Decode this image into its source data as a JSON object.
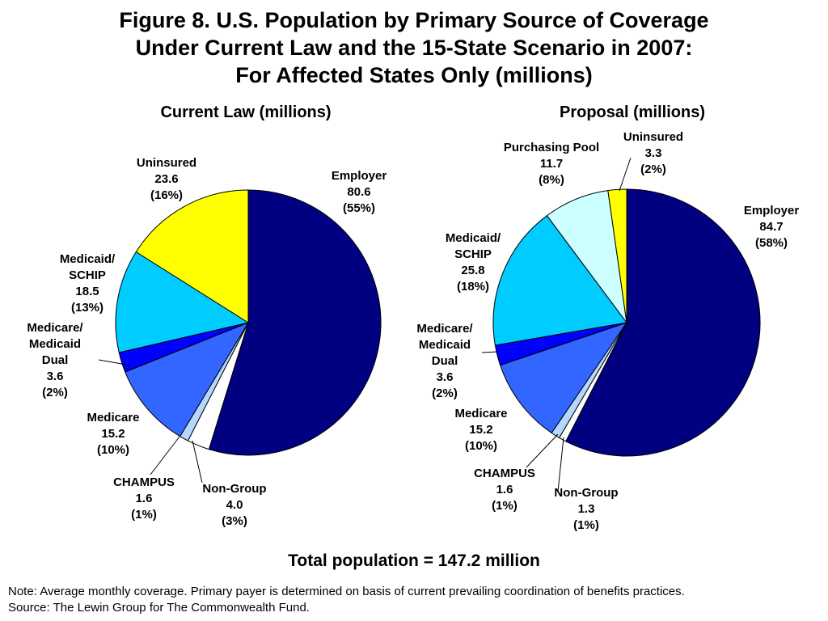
{
  "title_lines": [
    "Figure 8. U.S. Population by Primary Source of Coverage",
    "Under Current Law and the 15-State Scenario in 2007:",
    "For Affected States Only (millions)"
  ],
  "total": "Total population = 147.2 million",
  "note": "Note: Average monthly coverage. Primary payer is determined on basis of current prevailing coordination of benefits practices.",
  "source": "Source: The Lewin Group for The Commonwealth Fund.",
  "chart_data": [
    {
      "type": "pie",
      "title": "Current Law (millions)",
      "categories": [
        "Employer",
        "Non-Group",
        "CHAMPUS",
        "Medicare",
        "Medicare/ Medicaid Dual",
        "Medicaid/ SCHIP",
        "Uninsured"
      ],
      "values": [
        80.6,
        4.0,
        1.6,
        15.2,
        3.6,
        18.5,
        23.6
      ],
      "percents": [
        "55%",
        "3%",
        "1%",
        "10%",
        "2%",
        "13%",
        "16%"
      ],
      "colors": [
        "#000080",
        "#ffffff",
        "#b3d7ff",
        "#3366ff",
        "#0000ff",
        "#00ccff",
        "#ffff00"
      ],
      "labels": [
        {
          "lines": [
            "Employer",
            "80.6",
            "(55%)"
          ]
        },
        {
          "lines": [
            "Non-Group",
            "4.0",
            "(3%)"
          ]
        },
        {
          "lines": [
            "CHAMPUS",
            "1.6",
            "(1%)"
          ]
        },
        {
          "lines": [
            "Medicare",
            "15.2",
            "(10%)"
          ]
        },
        {
          "lines": [
            "Medicare/",
            "Medicaid",
            "Dual",
            "3.6",
            "(2%)"
          ]
        },
        {
          "lines": [
            "Medicaid/",
            "SCHIP",
            "18.5",
            "(13%)"
          ]
        },
        {
          "lines": [
            "Uninsured",
            "23.6",
            "(16%)"
          ]
        }
      ]
    },
    {
      "type": "pie",
      "title": "Proposal (millions)",
      "categories": [
        "Employer",
        "Non-Group",
        "CHAMPUS",
        "Medicare",
        "Medicare/ Medicaid Dual",
        "Medicaid/ SCHIP",
        "Purchasing Pool",
        "Uninsured"
      ],
      "values": [
        84.7,
        1.3,
        1.6,
        15.2,
        3.6,
        25.8,
        11.7,
        3.3
      ],
      "percents": [
        "58%",
        "1%",
        "1%",
        "10%",
        "2%",
        "18%",
        "8%",
        "2%"
      ],
      "colors": [
        "#000080",
        "#ffffff",
        "#b3d7ff",
        "#3366ff",
        "#0000ff",
        "#00ccff",
        "#ccffff",
        "#ffff00"
      ],
      "labels": [
        {
          "lines": [
            "Employer",
            "84.7",
            "(58%)"
          ]
        },
        {
          "lines": [
            "Non-Group",
            "1.3",
            "(1%)"
          ]
        },
        {
          "lines": [
            "CHAMPUS",
            "1.6",
            "(1%)"
          ]
        },
        {
          "lines": [
            "Medicare",
            "15.2",
            "(10%)"
          ]
        },
        {
          "lines": [
            "Medicare/",
            "Medicaid",
            "Dual",
            "3.6",
            "(2%)"
          ]
        },
        {
          "lines": [
            "Medicaid/",
            "SCHIP",
            "25.8",
            "(18%)"
          ]
        },
        {
          "lines": [
            "Purchasing Pool",
            "11.7",
            "(8%)"
          ]
        },
        {
          "lines": [
            "Uninsured",
            "3.3",
            "(2%)"
          ]
        }
      ]
    }
  ]
}
